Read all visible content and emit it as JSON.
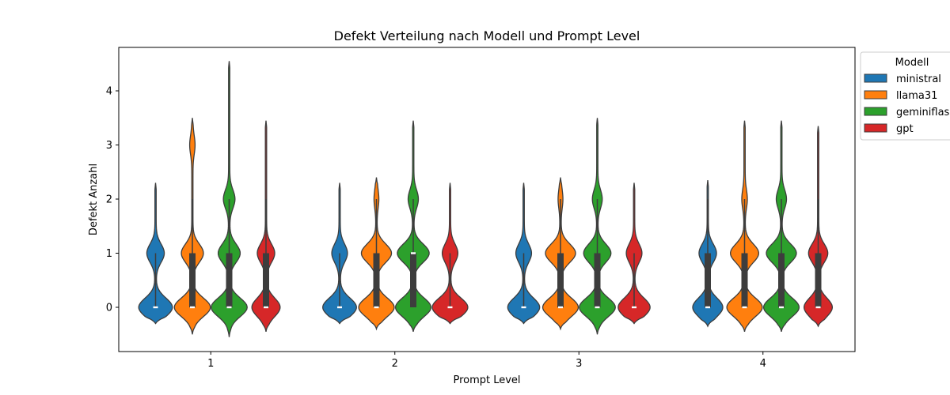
{
  "chart_data": {
    "type": "violin",
    "title": "Defekt Verteilung nach Modell und Prompt Level",
    "xlabel": "Prompt Level",
    "ylabel": "Defekt Anzahl",
    "categories": [
      "1",
      "2",
      "3",
      "4"
    ],
    "ylim": [
      -0.8,
      4.8
    ],
    "yticks": [
      0,
      1,
      2,
      3,
      4
    ],
    "grid": false,
    "legend": {
      "title": "Modell",
      "position": "outside-top-right"
    },
    "series": [
      {
        "name": "ministral",
        "color": "#1f77b4",
        "values": [
          {
            "min": 0,
            "q1": 0,
            "median": 0,
            "q3": 0,
            "max": 1,
            "extent": [
              -0.3,
              2.3
            ],
            "peaks": [
              0,
              1
            ],
            "peakWidths": [
              0.9,
              0.45
            ]
          },
          {
            "min": 0,
            "q1": 0,
            "median": 0,
            "q3": 0,
            "max": 1,
            "extent": [
              -0.3,
              2.3
            ],
            "peaks": [
              0,
              1
            ],
            "peakWidths": [
              0.9,
              0.4
            ]
          },
          {
            "min": 0,
            "q1": 0,
            "median": 0,
            "q3": 0,
            "max": 1,
            "extent": [
              -0.3,
              2.3
            ],
            "peaks": [
              0,
              1
            ],
            "peakWidths": [
              0.85,
              0.4
            ]
          },
          {
            "min": 0,
            "q1": 0,
            "median": 0,
            "q3": 1,
            "max": 2,
            "extent": [
              -0.35,
              2.35
            ],
            "peaks": [
              0,
              1
            ],
            "peakWidths": [
              0.8,
              0.45
            ]
          }
        ]
      },
      {
        "name": "llama31",
        "color": "#ff7f0e",
        "values": [
          {
            "min": 0,
            "q1": 0,
            "median": 0,
            "q3": 1,
            "max": 2,
            "extent": [
              -0.5,
              3.5
            ],
            "peaks": [
              0,
              1,
              3
            ],
            "peakWidths": [
              1.0,
              0.6,
              0.12
            ]
          },
          {
            "min": 0,
            "q1": 0,
            "median": 0,
            "q3": 1,
            "max": 2,
            "extent": [
              -0.4,
              2.4
            ],
            "peaks": [
              0,
              1,
              2
            ],
            "peakWidths": [
              0.95,
              0.8,
              0.1
            ]
          },
          {
            "min": 0,
            "q1": 0,
            "median": 0,
            "q3": 1,
            "max": 2,
            "extent": [
              -0.4,
              2.4
            ],
            "peaks": [
              0,
              1,
              2
            ],
            "peakWidths": [
              0.95,
              0.8,
              0.1
            ]
          },
          {
            "min": 0,
            "q1": 0,
            "median": 0,
            "q3": 1,
            "max": 2,
            "extent": [
              -0.45,
              3.45
            ],
            "peaks": [
              0,
              1,
              2
            ],
            "peakWidths": [
              0.95,
              0.75,
              0.12
            ]
          }
        ]
      },
      {
        "name": "geminiflash",
        "color": "#2ca02c",
        "values": [
          {
            "min": 0,
            "q1": 0,
            "median": 0,
            "q3": 1,
            "max": 2,
            "extent": [
              -0.55,
              4.55
            ],
            "peaks": [
              0,
              1,
              2
            ],
            "peakWidths": [
              1.0,
              0.6,
              0.3
            ]
          },
          {
            "min": 0,
            "q1": 0,
            "median": 1,
            "q3": 1,
            "max": 2,
            "extent": [
              -0.45,
              3.45
            ],
            "peaks": [
              0,
              1,
              2
            ],
            "peakWidths": [
              0.95,
              0.85,
              0.25
            ]
          },
          {
            "min": 0,
            "q1": 0,
            "median": 0,
            "q3": 1,
            "max": 2,
            "extent": [
              -0.5,
              3.5
            ],
            "peaks": [
              0,
              1,
              2
            ],
            "peakWidths": [
              1.0,
              0.75,
              0.25
            ]
          },
          {
            "min": 0,
            "q1": 0,
            "median": 0,
            "q3": 1,
            "max": 2,
            "extent": [
              -0.45,
              3.45
            ],
            "peaks": [
              0,
              1,
              2
            ],
            "peakWidths": [
              0.95,
              0.8,
              0.25
            ]
          }
        ]
      },
      {
        "name": "gpt",
        "color": "#d62728",
        "values": [
          {
            "min": 0,
            "q1": 0,
            "median": 0,
            "q3": 1,
            "max": 2,
            "extent": [
              -0.45,
              3.45
            ],
            "peaks": [
              0,
              1
            ],
            "peakWidths": [
              0.75,
              0.45
            ]
          },
          {
            "min": 0,
            "q1": 0,
            "median": 0,
            "q3": 0,
            "max": 1,
            "extent": [
              -0.3,
              2.3
            ],
            "peaks": [
              0,
              1
            ],
            "peakWidths": [
              0.95,
              0.4
            ]
          },
          {
            "min": 0,
            "q1": 0,
            "median": 0,
            "q3": 0,
            "max": 1,
            "extent": [
              -0.3,
              2.3
            ],
            "peaks": [
              0,
              1
            ],
            "peakWidths": [
              0.85,
              0.4
            ]
          },
          {
            "min": 0,
            "q1": 0,
            "median": 0,
            "q3": 1,
            "max": 2,
            "extent": [
              -0.35,
              3.35
            ],
            "peaks": [
              0,
              1
            ],
            "peakWidths": [
              0.75,
              0.5
            ]
          }
        ]
      }
    ]
  }
}
